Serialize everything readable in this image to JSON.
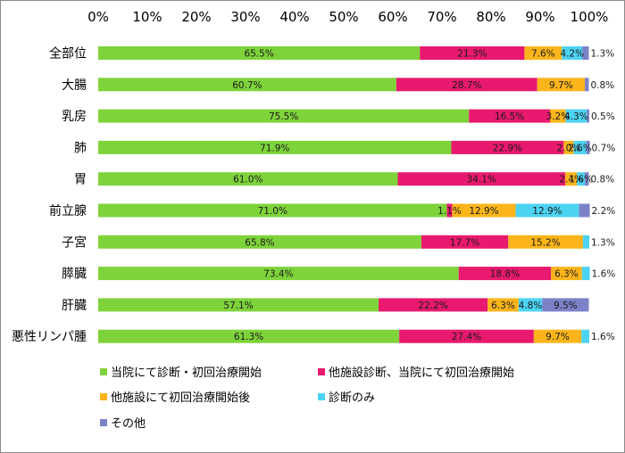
{
  "chart_data": {
    "type": "bar",
    "orientation": "horizontal",
    "stacked": "percent",
    "title": "",
    "xlabel": "",
    "ylabel": "",
    "xlim": [
      0,
      100
    ],
    "x_ticks": [
      "0%",
      "10%",
      "20%",
      "30%",
      "40%",
      "50%",
      "60%",
      "70%",
      "80%",
      "90%",
      "100%"
    ],
    "x_axis_position": "top",
    "grid": false,
    "legend_position": "bottom",
    "categories": [
      "全部位",
      "大腸",
      "乳房",
      "肺",
      "胃",
      "前立腺",
      "子宮",
      "膵臓",
      "肝臓",
      "悪性リンパ腫"
    ],
    "series": [
      {
        "name": "当院にて診断・初回治療開始",
        "color": "#7ed33b",
        "values": [
          65.5,
          60.7,
          75.5,
          71.9,
          61.0,
          71.0,
          65.8,
          73.4,
          57.1,
          61.3
        ],
        "labels": [
          "65.5%",
          "60.7%",
          "75.5%",
          "71.9%",
          "61.0%",
          "71.0%",
          "65.8%",
          "73.4%",
          "57.1%",
          "61.3%"
        ]
      },
      {
        "name": "他施設診断、当院にて初回治療開始",
        "color": "#e8196e",
        "values": [
          21.3,
          28.7,
          16.5,
          22.9,
          34.1,
          1.1,
          17.7,
          18.8,
          22.2,
          27.4
        ],
        "labels": [
          "21.3%",
          "28.7%",
          "16.5%",
          "22.9%",
          "34.1%",
          "1.1%",
          "17.7%",
          "18.8%",
          "22.2%",
          "27.4%"
        ]
      },
      {
        "name": "他施設にて初回治療開始後",
        "color": "#fbb51b",
        "values": [
          7.6,
          9.7,
          3.2,
          2.0,
          2.4,
          12.9,
          15.2,
          6.3,
          6.3,
          9.7
        ],
        "labels": [
          "7.6%",
          "9.7%",
          "3.2%",
          "2.0%",
          "2.4%",
          "12.9%",
          "15.2%",
          "6.3%",
          "6.3%",
          "9.7%"
        ]
      },
      {
        "name": "診断のみ",
        "color": "#4dd3f2",
        "values": [
          4.2,
          0.0,
          4.3,
          2.6,
          1.6,
          12.9,
          1.3,
          1.6,
          4.8,
          1.6
        ],
        "labels": [
          "4.2%",
          "",
          "4.3%",
          "2.6%",
          "1.6%",
          "12.9%",
          "1.3%",
          "1.6%",
          "4.8%",
          "1.6%"
        ]
      },
      {
        "name": "その他",
        "color": "#7b82c8",
        "values": [
          1.3,
          0.8,
          0.5,
          0.7,
          0.8,
          2.2,
          0.0,
          0.0,
          9.5,
          0.0
        ],
        "labels": [
          "1.3%",
          "0.8%",
          "0.5%",
          "0.7%",
          "0.8%",
          "2.2%",
          "",
          "",
          "9.5%",
          ""
        ]
      }
    ]
  }
}
